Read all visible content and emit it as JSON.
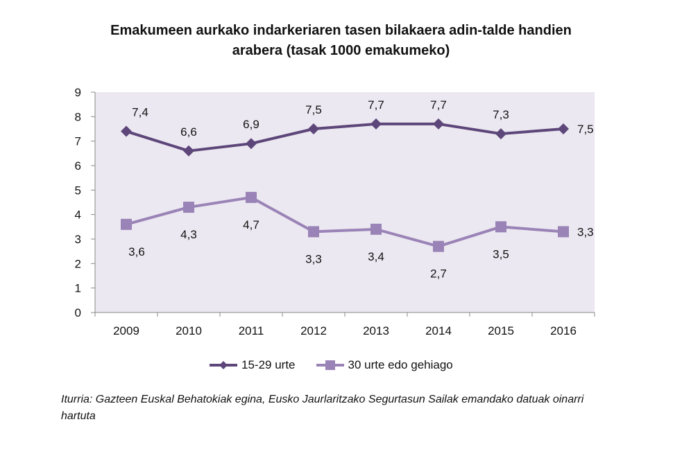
{
  "chart_data": {
    "type": "line",
    "title": "Emakumeen aurkako indarkeriaren tasen bilakaera adin-talde handien arabera (tasak 1000 emakumeko)",
    "title_lines": [
      "Emakumeen aurkako indarkeriaren tasen bilakaera adin-talde handien",
      "arabera (tasak 1000 emakumeko)"
    ],
    "categories": [
      "2009",
      "2010",
      "2011",
      "2012",
      "2013",
      "2014",
      "2015",
      "2016"
    ],
    "ylim": [
      0,
      9
    ],
    "yticks": [
      0,
      1,
      2,
      3,
      4,
      5,
      6,
      7,
      8,
      9
    ],
    "grid": false,
    "legend": "bottom",
    "plot_background": "#ece8f1",
    "series": [
      {
        "name": "15-29 urte",
        "marker": "diamond",
        "color": "#5d4679",
        "values": [
          7.4,
          6.6,
          6.9,
          7.5,
          7.7,
          7.7,
          7.3,
          7.5
        ],
        "labels": [
          "7,4",
          "6,6",
          "6,9",
          "7,5",
          "7,7",
          "7,7",
          "7,3",
          "7,5"
        ]
      },
      {
        "name": "30 urte edo gehiago",
        "marker": "square",
        "color": "#9a83b6",
        "values": [
          3.6,
          4.3,
          4.7,
          3.3,
          3.4,
          2.7,
          3.5,
          3.3
        ],
        "labels": [
          "3,6",
          "4,3",
          "4,7",
          "3,3",
          "3,4",
          "2,7",
          "3,5",
          "3,3"
        ]
      }
    ]
  },
  "source": "Iturria: Gazteen Euskal Behatokiak egina, Eusko Jaurlaritzako Segurtasun Sailak emandako datuak oinarri hartuta"
}
